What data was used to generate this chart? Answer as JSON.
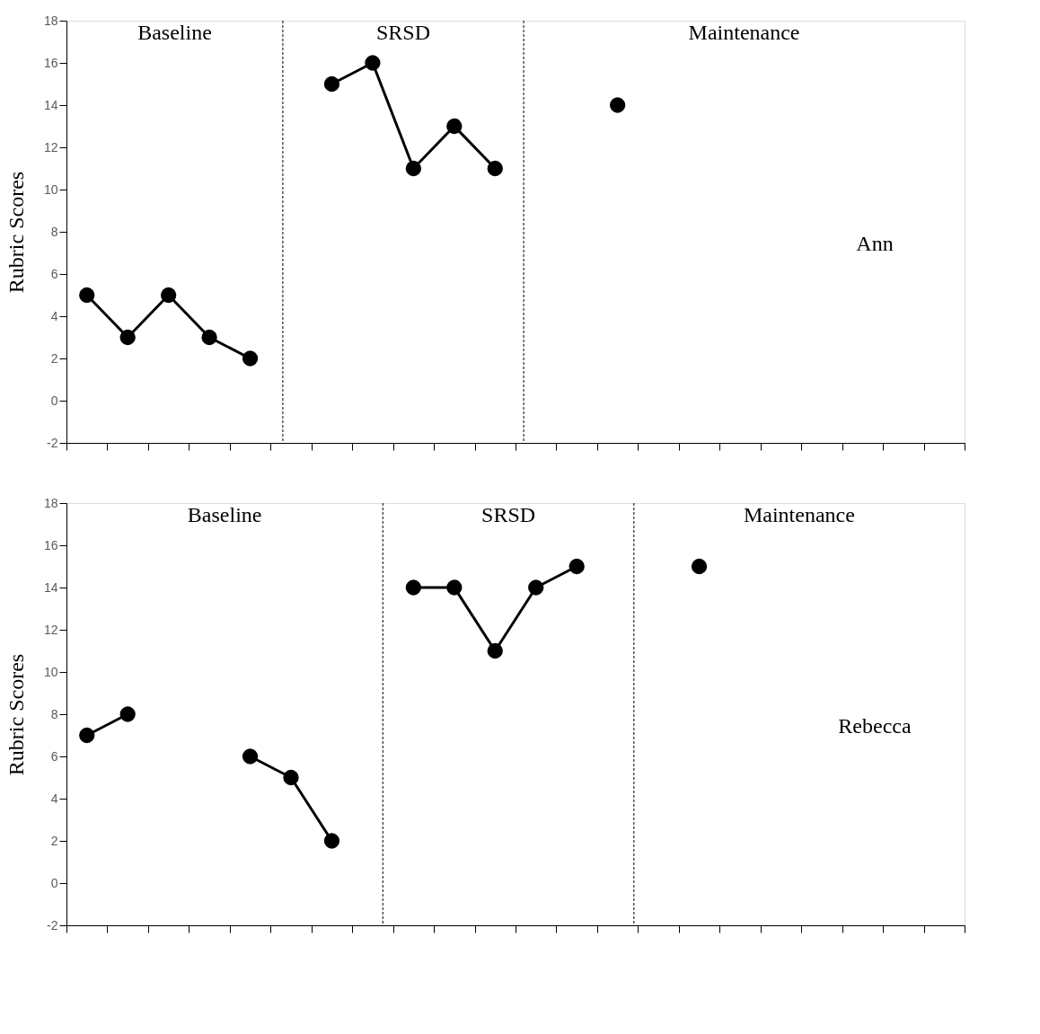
{
  "chart_data": [
    {
      "type": "line",
      "ylabel": "Rubric Scores",
      "categories": [
        null,
        null,
        null,
        null,
        null,
        null,
        null,
        null,
        null,
        null,
        null,
        null,
        null,
        null,
        null,
        null,
        null,
        null,
        null,
        null,
        null,
        null
      ],
      "series": [
        {
          "color": "#000000",
          "values": [
            5,
            3,
            5,
            3,
            2,
            null,
            null,
            null,
            null,
            null,
            null,
            null,
            null,
            null,
            null,
            null,
            null,
            null,
            null,
            null,
            null,
            null
          ]
        },
        {
          "color": "#000000",
          "values": [
            null,
            null,
            null,
            null,
            null,
            null,
            15,
            16,
            11,
            13,
            11,
            null,
            null,
            null,
            null,
            null,
            null,
            null,
            null,
            null,
            null,
            null
          ]
        },
        {
          "color": "#000000",
          "values": [
            null,
            null,
            null,
            null,
            null,
            null,
            null,
            null,
            null,
            null,
            null,
            null,
            null,
            14,
            null,
            null,
            null,
            null,
            null,
            null,
            null,
            null
          ]
        }
      ],
      "ylim": [
        -2,
        18
      ],
      "yticks": [
        -2,
        0,
        2,
        4,
        6,
        8,
        10,
        12,
        14,
        16,
        18
      ],
      "tick_labels": "y",
      "grid": false,
      "marker": "circle",
      "line_style": "solid",
      "annotations": [
        "Baseline",
        "SRSD",
        "Maintenance",
        "Ann"
      ]
    },
    {
      "type": "line",
      "ylabel": "Rubric Scores",
      "categories": [
        null,
        null,
        null,
        null,
        null,
        null,
        null,
        null,
        null,
        null,
        null,
        null,
        null,
        null,
        null,
        null,
        null,
        null,
        null,
        null,
        null,
        null
      ],
      "series": [
        {
          "color": "#000000",
          "values": [
            7,
            8,
            null,
            null,
            null,
            null,
            null,
            null,
            null,
            null,
            null,
            null,
            null,
            null,
            null,
            null,
            null,
            null,
            null,
            null,
            null,
            null
          ]
        },
        {
          "color": "#000000",
          "values": [
            null,
            null,
            null,
            null,
            6,
            5,
            2,
            null,
            null,
            null,
            null,
            null,
            null,
            null,
            null,
            null,
            null,
            null,
            null,
            null,
            null,
            null
          ]
        },
        {
          "color": "#000000",
          "values": [
            null,
            null,
            null,
            null,
            null,
            null,
            null,
            null,
            14,
            14,
            11,
            14,
            15,
            null,
            null,
            null,
            null,
            null,
            null,
            null,
            null,
            null
          ]
        },
        {
          "color": "#000000",
          "values": [
            null,
            null,
            null,
            null,
            null,
            null,
            null,
            null,
            null,
            null,
            null,
            null,
            null,
            null,
            null,
            15,
            null,
            null,
            null,
            null,
            null,
            null
          ]
        }
      ],
      "ylim": [
        -2,
        18
      ],
      "yticks": [
        -2,
        0,
        2,
        4,
        6,
        8,
        10,
        12,
        14,
        16,
        18
      ],
      "tick_labels": "y",
      "grid": false,
      "marker": "circle",
      "line_style": "solid",
      "annotations": [
        "Baseline",
        "SRSD",
        "Maintenance",
        "Rebecca"
      ]
    }
  ]
}
